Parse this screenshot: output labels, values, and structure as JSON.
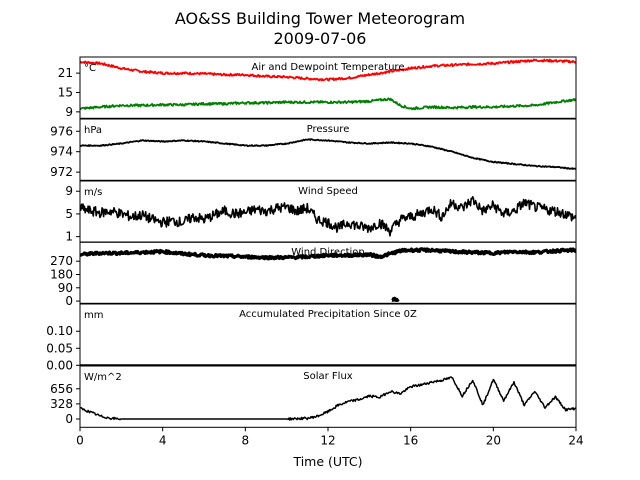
{
  "title_line1": "AO&SS Building Tower Meteorogram",
  "title_line2": "2009-07-06",
  "chart_data": {
    "type": "line",
    "xlabel": "Time (UTC)",
    "xlim": [
      0,
      24
    ],
    "xticks": [
      0,
      4,
      8,
      12,
      16,
      20,
      24
    ],
    "xtick_labels": [
      "0",
      "4",
      "8",
      "12",
      "16",
      "20",
      "24"
    ],
    "panels": [
      {
        "key": "temp",
        "title": "Air and Dewpoint Temperature",
        "unit": "°C",
        "ylim": [
          7,
          26
        ],
        "yticks": [
          9,
          15,
          21
        ],
        "ytick_labels": [
          "9",
          "15",
          "21"
        ],
        "series": [
          {
            "color": "#ff0000",
            "x": [
              0,
              1,
              2,
              3,
              4,
              5,
              6,
              7,
              8,
              9,
              10,
              11,
              12,
              13,
              14,
              15,
              16,
              17,
              18,
              19,
              20,
              21,
              22,
              23,
              24
            ],
            "y": [
              24.5,
              24,
              22.5,
              21.5,
              21,
              21,
              20.8,
              20.5,
              20.5,
              20,
              19.8,
              19.3,
              19,
              19.5,
              20.5,
              21.5,
              22.5,
              23.2,
              23.5,
              23.8,
              24,
              24.5,
              25,
              24.8,
              24.5
            ]
          },
          {
            "color": "#008000",
            "x": [
              0,
              1,
              2,
              3,
              4,
              5,
              6,
              7,
              8,
              9,
              10,
              11,
              12,
              13,
              14,
              15,
              15.5,
              16,
              17,
              18,
              19,
              20,
              21,
              22,
              23,
              24
            ],
            "y": [
              10,
              10.5,
              11,
              11,
              11.2,
              11.2,
              11.5,
              11.5,
              11.8,
              11.8,
              12,
              12,
              12,
              12,
              12.3,
              13,
              11,
              10,
              10.5,
              10.3,
              10.5,
              10.5,
              10.8,
              11,
              12,
              12.8
            ]
          }
        ]
      },
      {
        "key": "pressure",
        "title": "Pressure",
        "unit": "hPa",
        "ylim": [
          971.2,
          977.2
        ],
        "yticks": [
          972,
          974,
          976
        ],
        "ytick_labels": [
          "972",
          "974",
          "976"
        ],
        "series": [
          {
            "color": "#000000",
            "x": [
              0,
              1,
              2,
              3,
              4,
              5,
              6,
              7,
              8,
              9,
              10,
              11,
              12,
              13,
              14,
              15,
              16,
              17,
              18,
              19,
              20,
              21,
              22,
              23,
              24
            ],
            "y": [
              974.6,
              974.6,
              974.8,
              975.1,
              975,
              975.1,
              975,
              974.8,
              974.6,
              974.6,
              974.8,
              975.2,
              975.1,
              974.9,
              974.8,
              974.9,
              974.8,
              974.5,
              974,
              973.4,
              973,
              972.8,
              972.6,
              972.5,
              972.3
            ]
          }
        ]
      },
      {
        "key": "wspd",
        "title": "Wind Speed",
        "unit": "m/s",
        "ylim": [
          0,
          10.8
        ],
        "yticks": [
          1,
          5,
          9
        ],
        "ytick_labels": [
          "1",
          "5",
          "9"
        ],
        "series": [
          {
            "color": "#000000",
            "x": [
              0,
              0.5,
              1,
              1.5,
              2,
              2.5,
              3,
              3.5,
              4,
              4.5,
              5,
              5.5,
              6,
              6.5,
              7,
              7.5,
              8,
              8.5,
              9,
              9.5,
              10,
              10.5,
              11,
              11.5,
              12,
              12.5,
              13,
              13.5,
              14,
              14.5,
              15,
              15.5,
              16,
              16.5,
              17,
              17.5,
              18,
              18.5,
              19,
              19.5,
              20,
              20.5,
              21,
              21.5,
              22,
              22.5,
              23,
              23.5,
              24
            ],
            "y": [
              6,
              5.5,
              5.2,
              5.5,
              5,
              4.5,
              4.8,
              4,
              3.5,
              3.8,
              3.5,
              4.5,
              4,
              4.8,
              5.5,
              5,
              5.2,
              5.8,
              5.5,
              6,
              6.2,
              5.5,
              6,
              4,
              3.5,
              2.5,
              3.5,
              2.8,
              2.5,
              3.5,
              2,
              4,
              4.5,
              5,
              6,
              4.5,
              7,
              6,
              7.5,
              5.5,
              6.5,
              5,
              5.5,
              7,
              6.2,
              5.8,
              5.5,
              5,
              4.2
            ]
          }
        ]
      },
      {
        "key": "wdir",
        "title": "Wind Direction",
        "unit": "",
        "ylim": [
          -15,
          400
        ],
        "yticks": [
          0,
          90,
          180,
          270
        ],
        "ytick_labels": [
          "0",
          "90",
          "180",
          "270"
        ],
        "series": [
          {
            "color": "#000000",
            "x": [
              0,
              1,
              2,
              3,
              4,
              5,
              6,
              7,
              8,
              9,
              10,
              11,
              12,
              13,
              14,
              14.5,
              15,
              15.5,
              16,
              17,
              18,
              19,
              20,
              21,
              22,
              23,
              24
            ],
            "y": [
              315,
              325,
              325,
              330,
              335,
              320,
              310,
              305,
              300,
              295,
              295,
              300,
              310,
              310,
              315,
              300,
              320,
              340,
              345,
              345,
              335,
              330,
              325,
              335,
              330,
              340,
              345
            ]
          },
          {
            "color": "#000000",
            "x": [
              15.1,
              15.2,
              15.3,
              15.4
            ],
            "y": [
              5,
              15,
              8,
              12
            ]
          }
        ]
      },
      {
        "key": "precip",
        "title": "Accumulated Precipitation Since 0Z",
        "unit": "mm",
        "ylim": [
          0,
          0.18
        ],
        "yticks": [
          0.0,
          0.05,
          0.1
        ],
        "ytick_labels": [
          "0.00",
          "0.05",
          "0.10"
        ],
        "series": [
          {
            "color": "#000000",
            "x": [
              0,
              24
            ],
            "y": [
              0,
              0
            ]
          }
        ]
      },
      {
        "key": "solar",
        "title": "Solar Flux",
        "unit": "W/m^2",
        "ylim": [
          -180,
          1150
        ],
        "yticks": [
          0,
          328,
          656
        ],
        "ytick_labels": [
          "0",
          "328",
          "656"
        ],
        "series": [
          {
            "color": "#000000",
            "x": [
              0,
              0.5,
              1,
              1.5,
              2,
              4,
              6,
              8,
              10,
              11,
              11.5,
              12,
              12.5,
              13,
              13.5,
              14,
              14.5,
              15,
              15.5,
              16,
              16.5,
              17,
              17.5,
              18,
              18.5,
              19,
              19.5,
              20,
              20.5,
              21,
              21.5,
              22,
              22.5,
              23,
              23.5,
              24
            ],
            "y": [
              230,
              150,
              60,
              15,
              0,
              0,
              0,
              0,
              0,
              15,
              60,
              160,
              300,
              380,
              420,
              500,
              470,
              600,
              550,
              700,
              740,
              800,
              840,
              900,
              500,
              850,
              300,
              860,
              400,
              800,
              300,
              600,
              250,
              480,
              200,
              230
            ]
          }
        ]
      }
    ]
  }
}
